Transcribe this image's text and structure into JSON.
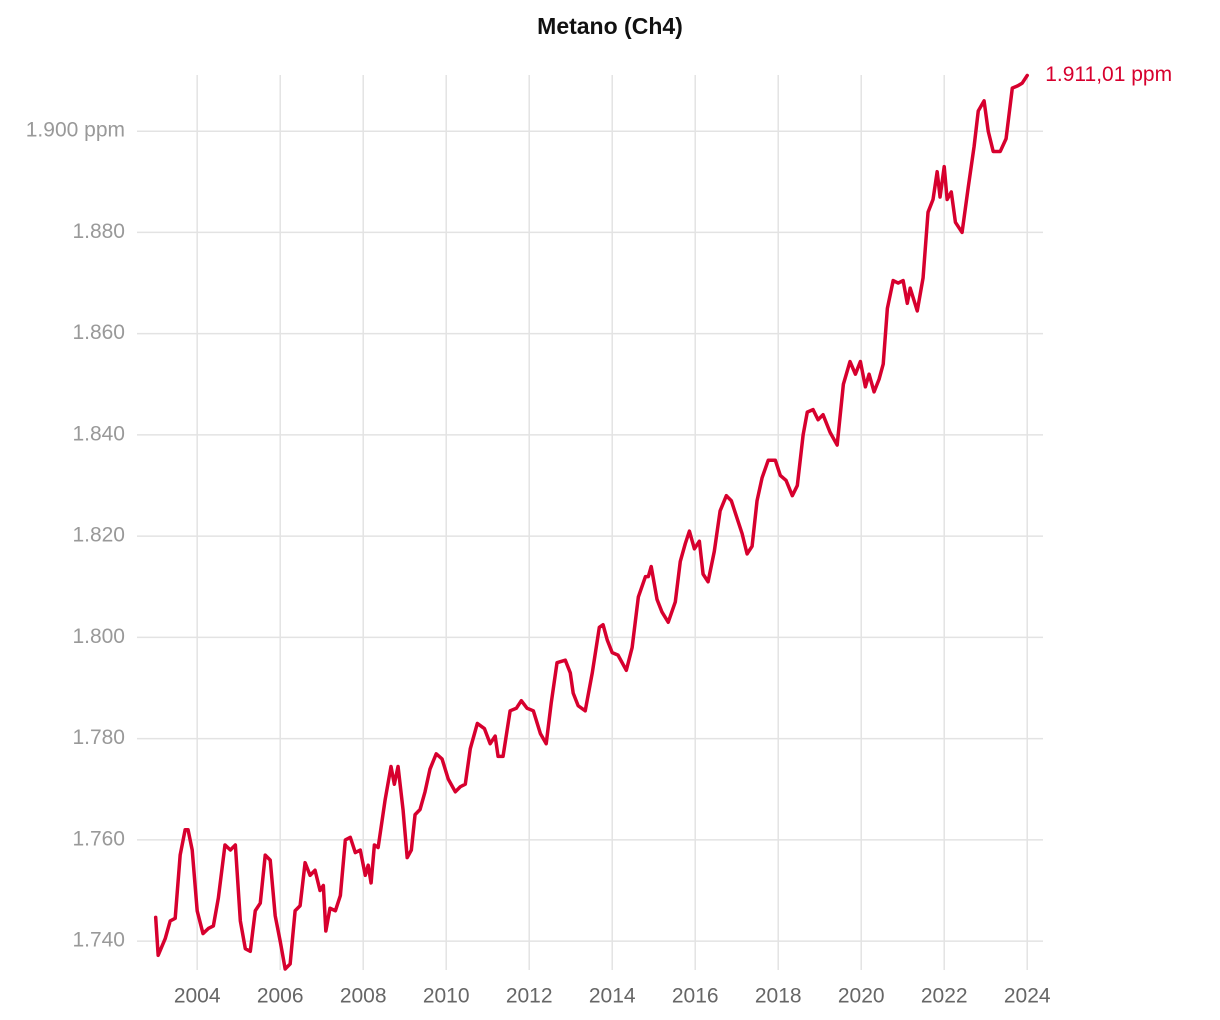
{
  "chart_data": {
    "type": "line",
    "title": "Metano (Ch4)",
    "color": "#d7002e",
    "grid": true,
    "xlim": [
      2002.55,
      2024.38
    ],
    "xticks": [
      2004,
      2006,
      2008,
      2010,
      2012,
      2014,
      2016,
      2018,
      2020,
      2022,
      2024
    ],
    "ylim": [
      1734.3,
      1911.1
    ],
    "yticks": [
      {
        "value": 1740,
        "label": "1.740"
      },
      {
        "value": 1760,
        "label": "1.760"
      },
      {
        "value": 1780,
        "label": "1.780"
      },
      {
        "value": 1800,
        "label": "1.800"
      },
      {
        "value": 1820,
        "label": "1.820"
      },
      {
        "value": 1840,
        "label": "1.840"
      },
      {
        "value": 1860,
        "label": "1.860"
      },
      {
        "value": 1880,
        "label": "1.880"
      },
      {
        "value": 1900,
        "label": "1.900 ppm"
      }
    ],
    "x": [
      2003.0,
      2003.06,
      2003.23,
      2003.35,
      2003.47,
      2003.59,
      2003.71,
      2003.78,
      2003.88,
      2004.0,
      2004.14,
      2004.27,
      2004.39,
      2004.51,
      2004.67,
      2004.8,
      2004.92,
      2005.04,
      2005.16,
      2005.28,
      2005.4,
      2005.52,
      2005.64,
      2005.76,
      2005.88,
      2006.0,
      2006.12,
      2006.24,
      2006.36,
      2006.48,
      2006.6,
      2006.72,
      2006.84,
      2006.96,
      2007.04,
      2007.1,
      2007.2,
      2007.33,
      2007.45,
      2007.57,
      2007.69,
      2007.81,
      2007.93,
      2008.05,
      2008.12,
      2008.19,
      2008.27,
      2008.36,
      2008.53,
      2008.67,
      2008.75,
      2008.84,
      2008.96,
      2009.06,
      2009.16,
      2009.25,
      2009.37,
      2009.49,
      2009.61,
      2009.76,
      2009.9,
      2010.05,
      2010.22,
      2010.34,
      2010.46,
      2010.58,
      2010.75,
      2010.92,
      2011.06,
      2011.18,
      2011.25,
      2011.37,
      2011.54,
      2011.69,
      2011.81,
      2011.95,
      2012.1,
      2012.27,
      2012.41,
      2012.53,
      2012.67,
      2012.87,
      2012.99,
      2013.06,
      2013.18,
      2013.35,
      2013.52,
      2013.69,
      2013.78,
      2013.88,
      2014.0,
      2014.14,
      2014.34,
      2014.48,
      2014.63,
      2014.8,
      2014.87,
      2014.94,
      2015.08,
      2015.2,
      2015.35,
      2015.52,
      2015.64,
      2015.76,
      2015.86,
      2015.98,
      2016.1,
      2016.19,
      2016.31,
      2016.46,
      2016.6,
      2016.75,
      2016.87,
      2016.99,
      2017.13,
      2017.25,
      2017.37,
      2017.49,
      2017.61,
      2017.76,
      2017.93,
      2018.05,
      2018.19,
      2018.34,
      2018.46,
      2018.6,
      2018.7,
      2018.84,
      2018.96,
      2019.08,
      2019.25,
      2019.42,
      2019.57,
      2019.73,
      2019.86,
      2019.98,
      2020.1,
      2020.19,
      2020.31,
      2020.43,
      2020.53,
      2020.63,
      2020.77,
      2020.89,
      2021.01,
      2021.11,
      2021.18,
      2021.35,
      2021.49,
      2021.61,
      2021.73,
      2021.83,
      2021.9,
      2022.0,
      2022.07,
      2022.17,
      2022.27,
      2022.43,
      2022.58,
      2022.72,
      2022.82,
      2022.96,
      2023.06,
      2023.18,
      2023.35,
      2023.49,
      2023.64,
      2023.78,
      2023.88,
      2024.0
    ],
    "values": [
      1744.7,
      1737.2,
      1740.5,
      1744,
      1744.5,
      1757,
      1762,
      1762,
      1758,
      1746,
      1741.5,
      1742.5,
      1743,
      1748.5,
      1759,
      1758,
      1759,
      1744,
      1738.5,
      1738,
      1746,
      1747.5,
      1757,
      1756,
      1745,
      1740,
      1734.5,
      1735.5,
      1746,
      1747,
      1755.5,
      1753,
      1754,
      1750,
      1751,
      1742,
      1746.5,
      1746,
      1749,
      1760,
      1760.5,
      1757.5,
      1758,
      1753,
      1755,
      1751.5,
      1759,
      1758.5,
      1768,
      1774.5,
      1771,
      1774.5,
      1766,
      1756.5,
      1758,
      1765,
      1766,
      1769.5,
      1774,
      1777,
      1776,
      1772,
      1769.5,
      1770.5,
      1771,
      1778,
      1783,
      1782,
      1779,
      1780.5,
      1776.5,
      1776.5,
      1785.5,
      1786,
      1787.5,
      1786,
      1785.5,
      1781,
      1779,
      1787,
      1795,
      1795.5,
      1793,
      1789,
      1786.5,
      1785.5,
      1793,
      1802,
      1802.5,
      1799.5,
      1797,
      1796.5,
      1793.5,
      1798,
      1808,
      1812,
      1812,
      1814,
      1807.5,
      1805,
      1803,
      1807,
      1815,
      1818.5,
      1821,
      1817.5,
      1819,
      1812.5,
      1811,
      1817,
      1825,
      1828,
      1827,
      1824,
      1820.5,
      1816.5,
      1818,
      1827,
      1831.5,
      1835,
      1835,
      1832,
      1831,
      1828,
      1830,
      1840,
      1844.5,
      1845,
      1843,
      1844,
      1840.5,
      1838,
      1850,
      1854.5,
      1852,
      1854.5,
      1849.5,
      1852,
      1848.5,
      1851,
      1854,
      1865,
      1870.5,
      1870,
      1870.5,
      1866,
      1869,
      1864.5,
      1871,
      1884,
      1886.5,
      1892,
      1887,
      1893,
      1886.5,
      1888,
      1882,
      1880,
      1889,
      1897,
      1904,
      1906,
      1900,
      1896,
      1896,
      1898.5,
      1908.5,
      1909,
      1909.5,
      1911.01
    ],
    "value_labels": [
      null,
      null,
      null,
      null,
      null,
      null,
      null,
      null,
      null,
      null,
      null,
      null,
      null,
      null,
      null,
      null,
      null,
      null,
      null,
      null,
      null,
      null,
      null,
      null,
      null,
      null,
      null,
      null,
      null,
      null,
      null,
      null,
      null,
      null,
      null,
      null,
      null,
      null,
      null,
      null,
      null,
      null,
      null,
      null,
      null,
      null,
      null,
      null,
      null,
      null,
      null,
      null,
      null,
      null,
      null,
      null,
      null,
      null,
      null,
      null,
      null,
      null,
      null,
      null,
      null,
      null,
      null,
      null,
      null,
      null,
      null,
      null,
      null,
      null,
      null,
      null,
      null,
      null,
      null,
      null,
      null,
      null,
      null,
      null,
      null,
      null,
      null,
      null,
      null,
      null,
      null,
      null,
      null,
      null,
      null,
      null,
      null,
      null,
      null,
      null,
      null,
      null,
      null,
      null,
      null,
      null,
      null,
      null,
      null,
      null,
      null,
      null,
      null,
      null,
      null,
      null,
      null,
      null,
      null,
      null,
      null,
      null,
      null,
      null,
      null,
      null,
      null,
      null,
      null,
      null,
      null,
      null,
      null,
      null,
      null,
      null,
      null,
      null,
      null,
      null,
      null,
      null,
      null,
      null,
      null,
      null,
      null,
      null,
      null,
      null,
      null,
      null,
      null,
      null,
      null,
      null,
      null,
      null,
      null,
      null,
      null,
      null,
      null,
      null,
      null,
      null,
      null,
      null,
      null,
      "1.911,01 ppm"
    ]
  }
}
